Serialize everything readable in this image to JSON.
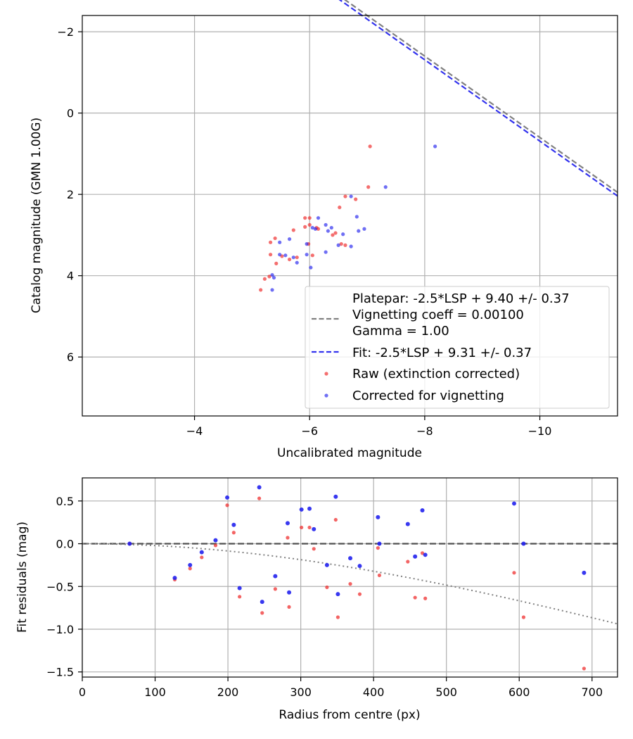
{
  "chart_data": [
    {
      "type": "scatter",
      "title": "",
      "xlabel": "Uncalibrated magnitude",
      "ylabel": "Catalog magnitude (GMN 1.00G)",
      "xlim": [
        -2.05,
        -11.35
      ],
      "ylim": [
        7.45,
        -2.4
      ],
      "x_inverted": true,
      "y_inverted": true,
      "xticks": [
        -4,
        -6,
        -8,
        -10
      ],
      "xtick_labels": [
        "−4",
        "−6",
        "−8",
        "−10"
      ],
      "yticks": [
        -2,
        0,
        2,
        4,
        6
      ],
      "ytick_labels": [
        "−2",
        "0",
        "2",
        "4",
        "6"
      ],
      "grid": true,
      "legend_position": "lower-right",
      "lines": [
        {
          "name": "Platepar: -2.5*LSP + 9.40 +/- 0.37\nVignetting coeff = 0.00100\nGamma = 1.00",
          "legend_lines": [
            "Platepar: -2.5*LSP + 9.40 +/- 0.37",
            "Vignetting coeff = 0.00100",
            "Gamma = 1.00"
          ],
          "slope": -1.0,
          "intercept": -9.4,
          "color": "#808080",
          "style": "dashed"
        },
        {
          "name": "Fit: -2.5*LSP + 9.31 +/- 0.37",
          "slope": -1.0,
          "intercept": -9.31,
          "color": "#3333ee",
          "style": "dashed"
        }
      ],
      "series": [
        {
          "name": "Raw (extinction corrected)",
          "color": "#ee2222",
          "points": [
            [
              -7.05,
              0.82
            ],
            [
              -7.02,
              1.82
            ],
            [
              -6.62,
              2.05
            ],
            [
              -6.8,
              2.12
            ],
            [
              -6.52,
              2.32
            ],
            [
              -5.92,
              2.58
            ],
            [
              -6.0,
              2.58
            ],
            [
              -5.92,
              2.8
            ],
            [
              -6.0,
              2.75
            ],
            [
              -6.12,
              2.82
            ],
            [
              -6.15,
              2.85
            ],
            [
              -6.45,
              2.95
            ],
            [
              -5.72,
              2.88
            ],
            [
              -5.4,
              3.08
            ],
            [
              -5.32,
              3.18
            ],
            [
              -6.55,
              3.22
            ],
            [
              -6.62,
              3.25
            ],
            [
              -5.98,
              3.22
            ],
            [
              -5.32,
              3.48
            ],
            [
              -5.52,
              3.52
            ],
            [
              -5.65,
              3.6
            ],
            [
              -5.78,
              3.55
            ],
            [
              -5.42,
              3.7
            ],
            [
              -5.3,
              4.02
            ],
            [
              -5.22,
              4.08
            ],
            [
              -5.15,
              4.35
            ],
            [
              -6.05,
              3.5
            ],
            [
              -6.4,
              3.0
            ]
          ]
        },
        {
          "name": "Corrected for vignetting",
          "color": "#2222ee",
          "points": [
            [
              -8.18,
              0.82
            ],
            [
              -7.32,
              1.82
            ],
            [
              -6.72,
              2.05
            ],
            [
              -6.82,
              2.55
            ],
            [
              -6.15,
              2.58
            ],
            [
              -6.28,
              2.75
            ],
            [
              -6.38,
              2.82
            ],
            [
              -6.05,
              2.82
            ],
            [
              -6.1,
              2.85
            ],
            [
              -6.58,
              2.98
            ],
            [
              -6.85,
              2.9
            ],
            [
              -6.95,
              2.85
            ],
            [
              -5.48,
              3.18
            ],
            [
              -5.95,
              3.22
            ],
            [
              -6.5,
              3.25
            ],
            [
              -6.72,
              3.28
            ],
            [
              -5.48,
              3.48
            ],
            [
              -5.58,
              3.5
            ],
            [
              -5.72,
              3.55
            ],
            [
              -5.95,
              3.48
            ],
            [
              -6.28,
              3.42
            ],
            [
              -5.78,
              3.68
            ],
            [
              -6.02,
              3.8
            ],
            [
              -5.35,
              3.98
            ],
            [
              -5.38,
              4.05
            ],
            [
              -5.35,
              4.35
            ],
            [
              -5.65,
              3.1
            ],
            [
              -6.32,
              2.9
            ]
          ]
        }
      ]
    },
    {
      "type": "scatter",
      "title": "",
      "xlabel": "Radius from centre (px)",
      "ylabel": "Fit residuals (mag)",
      "xlim": [
        0,
        735
      ],
      "ylim": [
        -1.56,
        0.77
      ],
      "xticks": [
        0,
        100,
        200,
        300,
        400,
        500,
        600,
        700
      ],
      "xtick_labels": [
        "0",
        "100",
        "200",
        "300",
        "400",
        "500",
        "600",
        "700"
      ],
      "yticks": [
        0.5,
        0.0,
        -0.5,
        -1.0,
        -1.5
      ],
      "ytick_labels": [
        "0.5",
        "0.0",
        "−0.5",
        "−1.0",
        "−1.5"
      ],
      "grid": true,
      "zero_line": {
        "y": 0.0,
        "color": "#505050",
        "style": "dashed"
      },
      "vignetting_curve": {
        "coeff": 0.001,
        "color": "#808080",
        "style": "dotted"
      },
      "series": [
        {
          "name": "Raw (extinction corrected)",
          "color": "#ee2222",
          "points": [
            [
              65,
              0.0
            ],
            [
              127,
              -0.42
            ],
            [
              148,
              -0.29
            ],
            [
              164,
              -0.16
            ],
            [
              183,
              -0.02
            ],
            [
              199,
              0.45
            ],
            [
              208,
              0.13
            ],
            [
              216,
              -0.62
            ],
            [
              243,
              0.53
            ],
            [
              247,
              -0.81
            ],
            [
              265,
              -0.53
            ],
            [
              282,
              0.07
            ],
            [
              284,
              -0.74
            ],
            [
              301,
              0.19
            ],
            [
              312,
              0.19
            ],
            [
              318,
              -0.06
            ],
            [
              336,
              -0.51
            ],
            [
              348,
              0.28
            ],
            [
              351,
              -0.86
            ],
            [
              368,
              -0.47
            ],
            [
              381,
              -0.59
            ],
            [
              406,
              -0.05
            ],
            [
              408,
              -0.37
            ],
            [
              447,
              -0.21
            ],
            [
              457,
              -0.63
            ],
            [
              467,
              -0.11
            ],
            [
              471,
              -0.64
            ],
            [
              593,
              -0.34
            ],
            [
              606,
              -0.86
            ],
            [
              689,
              -1.46
            ]
          ]
        },
        {
          "name": "Corrected for vignetting",
          "color": "#2222ee",
          "points": [
            [
              65,
              0.0
            ],
            [
              127,
              -0.4
            ],
            [
              148,
              -0.25
            ],
            [
              164,
              -0.1
            ],
            [
              183,
              0.04
            ],
            [
              199,
              0.54
            ],
            [
              208,
              0.22
            ],
            [
              216,
              -0.52
            ],
            [
              243,
              0.66
            ],
            [
              247,
              -0.68
            ],
            [
              265,
              -0.38
            ],
            [
              282,
              0.24
            ],
            [
              284,
              -0.57
            ],
            [
              301,
              0.4
            ],
            [
              312,
              0.41
            ],
            [
              318,
              0.17
            ],
            [
              336,
              -0.25
            ],
            [
              348,
              0.55
            ],
            [
              351,
              -0.59
            ],
            [
              368,
              -0.17
            ],
            [
              381,
              -0.26
            ],
            [
              406,
              0.31
            ],
            [
              408,
              0.0
            ],
            [
              447,
              0.23
            ],
            [
              457,
              -0.15
            ],
            [
              467,
              0.39
            ],
            [
              471,
              -0.13
            ],
            [
              593,
              0.47
            ],
            [
              606,
              0.0
            ],
            [
              689,
              -0.34
            ]
          ]
        }
      ]
    }
  ]
}
